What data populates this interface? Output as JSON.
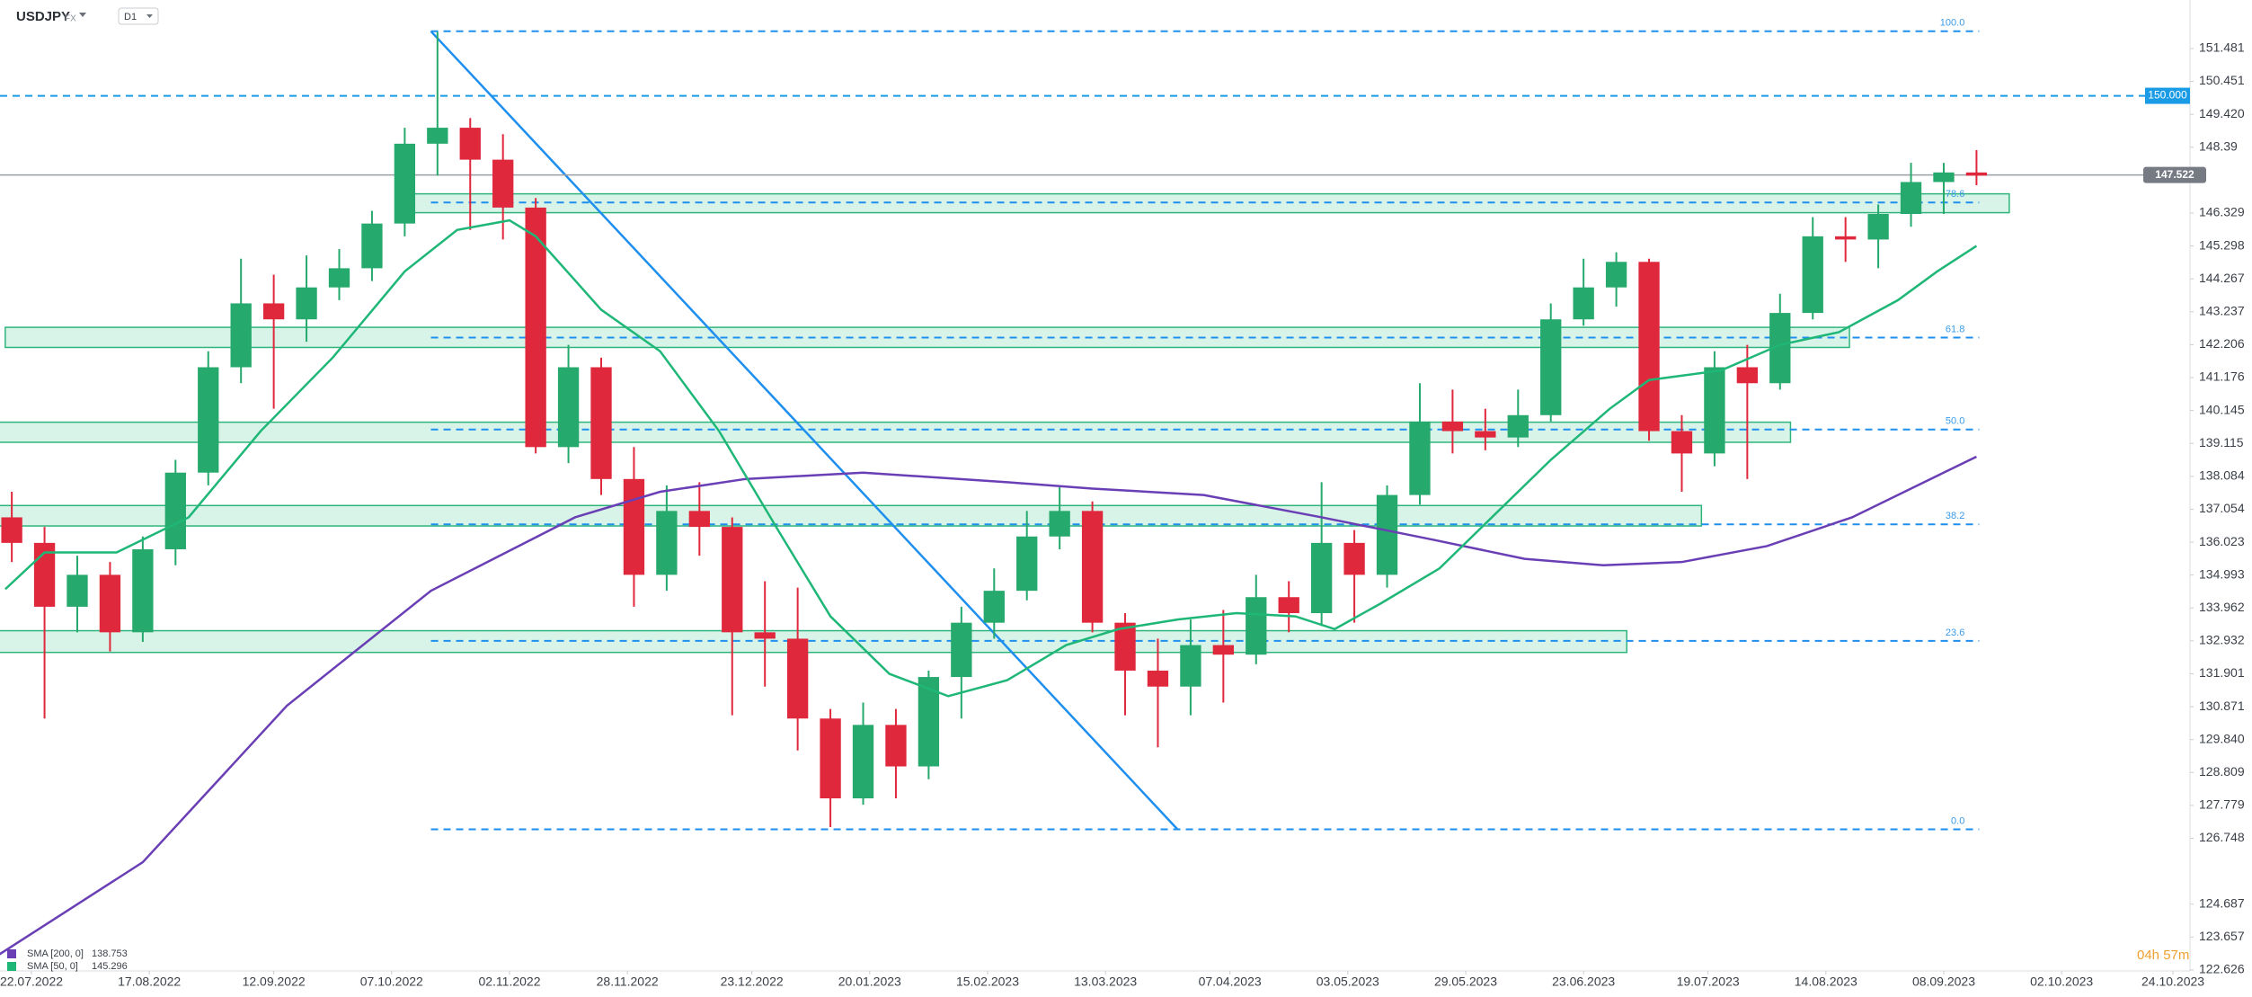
{
  "chart_data": {
    "type": "candlestick",
    "title": "USDJPY",
    "market": "FX",
    "interval": "D1",
    "countdown": "04h 57m",
    "up_color": "#26a96c",
    "down_color": "#e0283c",
    "xlim": [
      -4.8,
      329.6
    ],
    "ylim": [
      122.596,
      153.0
    ],
    "yticks": [
      151.481,
      150.451,
      {
        "value": 149.42,
        "label": "149.420"
      },
      148.39,
      146.329,
      145.298,
      144.267,
      143.237,
      142.206,
      141.176,
      140.145,
      139.115,
      138.084,
      137.054,
      136.023,
      134.993,
      133.962,
      132.932,
      131.901,
      130.871,
      {
        "value": 129.84,
        "label": "129.840"
      },
      128.809,
      127.779,
      126.748,
      124.687,
      123.657,
      122.626
    ],
    "xticks": [
      {
        "value": 0,
        "label": "22.07.2022"
      },
      {
        "value": 18,
        "label": "17.08.2022"
      },
      {
        "value": 37,
        "label": "12.09.2022"
      },
      {
        "value": 55,
        "label": "07.10.2022"
      },
      {
        "value": 73,
        "label": "02.11.2022"
      },
      {
        "value": 91,
        "label": "28.11.2022"
      },
      {
        "value": 110,
        "label": "23.12.2022"
      },
      {
        "value": 128,
        "label": "20.01.2023"
      },
      {
        "value": 146,
        "label": "15.02.2023"
      },
      {
        "value": 164,
        "label": "13.03.2023"
      },
      {
        "value": 183,
        "label": "07.04.2023"
      },
      {
        "value": 201,
        "label": "03.05.2023"
      },
      {
        "value": 219,
        "label": "29.05.2023"
      },
      {
        "value": 237,
        "label": "23.06.2023"
      },
      {
        "value": 256,
        "label": "19.07.2023"
      },
      {
        "value": 274,
        "label": "14.08.2023"
      },
      {
        "value": 292,
        "label": "08.09.2023"
      },
      {
        "value": 310,
        "label": "02.10.2023"
      },
      {
        "value": 327,
        "label": "24.10.2023"
      }
    ],
    "x": [
      -3,
      2,
      7,
      12,
      17,
      22,
      27,
      32,
      37,
      42,
      47,
      52,
      57,
      62,
      67,
      72,
      77,
      82,
      87,
      92,
      97,
      102,
      107,
      112,
      117,
      122,
      127,
      132,
      137,
      142,
      147,
      152,
      157,
      162,
      167,
      172,
      177,
      182,
      187,
      192,
      197,
      202,
      207,
      212,
      217,
      222,
      227,
      232,
      237,
      242,
      247,
      252,
      257,
      262,
      267,
      272,
      277,
      282,
      287,
      292,
      297
    ],
    "open": [
      136.8,
      136.0,
      134.0,
      135.0,
      133.2,
      135.8,
      138.2,
      141.5,
      143.5,
      143.0,
      144.0,
      144.6,
      146.0,
      148.5,
      149.0,
      148.0,
      146.5,
      139.0,
      141.5,
      138.0,
      135.0,
      137.0,
      136.5,
      133.2,
      133.0,
      130.5,
      128.0,
      130.3,
      129.0,
      131.8,
      133.5,
      134.5,
      136.2,
      137.0,
      133.5,
      132.0,
      131.5,
      132.8,
      132.5,
      134.3,
      133.8,
      136.0,
      135.0,
      137.5,
      139.8,
      139.5,
      139.3,
      140.0,
      143.0,
      144.0,
      144.8,
      139.5,
      138.8,
      141.5,
      141.0,
      143.2,
      145.6,
      145.5,
      146.3,
      147.3,
      147.6
    ],
    "high": [
      137.6,
      136.5,
      135.6,
      135.4,
      136.2,
      138.6,
      142.0,
      144.9,
      144.4,
      145.0,
      145.2,
      146.4,
      149.0,
      152.0,
      149.3,
      148.8,
      146.8,
      142.2,
      141.8,
      139.0,
      137.8,
      137.9,
      136.8,
      134.8,
      134.6,
      130.8,
      131.0,
      130.8,
      132.0,
      134.0,
      135.2,
      137.0,
      137.8,
      137.3,
      133.8,
      133.0,
      133.6,
      133.9,
      135.0,
      134.8,
      137.9,
      136.4,
      137.8,
      141.0,
      140.8,
      140.2,
      140.8,
      143.5,
      144.9,
      145.1,
      144.9,
      140.0,
      142.0,
      142.2,
      143.8,
      146.2,
      146.2,
      146.6,
      147.9,
      147.9,
      148.3
    ],
    "low": [
      135.4,
      130.5,
      133.2,
      132.6,
      132.9,
      135.3,
      137.8,
      141.0,
      140.2,
      142.3,
      143.6,
      144.2,
      145.6,
      147.5,
      145.8,
      145.5,
      138.8,
      138.5,
      137.5,
      134.0,
      134.5,
      135.6,
      130.6,
      131.5,
      129.5,
      127.1,
      127.8,
      128.0,
      128.6,
      130.5,
      133.0,
      134.2,
      135.8,
      133.2,
      130.6,
      129.6,
      130.6,
      131.0,
      132.2,
      133.2,
      133.4,
      133.5,
      134.6,
      137.2,
      138.8,
      138.9,
      139.0,
      139.8,
      142.8,
      143.4,
      139.2,
      137.6,
      138.4,
      138.0,
      140.8,
      143.0,
      144.8,
      144.6,
      145.9,
      146.3,
      147.2
    ],
    "close": [
      136.0,
      134.0,
      135.0,
      133.2,
      135.8,
      138.2,
      141.5,
      143.5,
      143.0,
      144.0,
      144.6,
      146.0,
      148.5,
      149.0,
      148.0,
      146.5,
      139.0,
      141.5,
      138.0,
      135.0,
      137.0,
      136.5,
      133.2,
      133.0,
      130.5,
      128.0,
      130.3,
      129.0,
      131.8,
      133.5,
      134.5,
      136.2,
      137.0,
      133.5,
      132.0,
      131.5,
      132.8,
      132.5,
      134.3,
      133.8,
      136.0,
      135.0,
      137.5,
      139.8,
      139.5,
      139.3,
      140.0,
      143.0,
      144.0,
      144.8,
      139.5,
      138.8,
      141.5,
      141.0,
      143.2,
      145.6,
      145.5,
      146.3,
      147.3,
      147.6,
      147.5
    ],
    "indicators": [
      {
        "name": "SMA [200, 0]",
        "value": 138.753,
        "color": "#6a3fb5",
        "x": [
          -5,
          17,
          39,
          61,
          83,
          96,
          109,
          127,
          149,
          162,
          179,
          197,
          214,
          228,
          240,
          252,
          265,
          278,
          289,
          297
        ],
        "values": [
          123.1,
          126.0,
          130.9,
          134.5,
          136.8,
          137.6,
          138.0,
          138.2,
          137.9,
          137.7,
          137.5,
          136.8,
          136.1,
          135.5,
          135.3,
          135.4,
          135.9,
          136.8,
          137.9,
          138.7
        ]
      },
      {
        "name": "SMA [50, 0]",
        "value": 145.296,
        "color": "#1fb777",
        "x": [
          -4,
          2,
          13,
          24,
          35,
          46,
          57,
          65,
          73,
          77,
          87,
          96,
          105,
          114,
          122,
          131,
          140,
          149,
          158,
          166,
          175,
          184,
          193,
          199,
          206,
          215,
          223,
          232,
          241,
          247,
          258,
          267,
          276,
          285,
          291,
          297
        ],
        "values": [
          134.55,
          135.7,
          135.7,
          136.8,
          139.5,
          141.8,
          144.5,
          145.8,
          146.1,
          145.6,
          143.3,
          142.0,
          139.5,
          136.4,
          133.7,
          131.9,
          131.2,
          131.7,
          132.8,
          133.3,
          133.6,
          133.8,
          133.7,
          133.3,
          134.1,
          135.2,
          136.8,
          138.6,
          140.2,
          141.1,
          141.4,
          142.2,
          142.6,
          143.6,
          144.5,
          145.3
        ]
      }
    ],
    "zones": [
      {
        "x": [
          56,
          302
        ],
        "low": 146.34,
        "high": 146.93
      },
      {
        "x": [
          -4,
          277.6
        ],
        "low": 142.12,
        "high": 142.75
      },
      {
        "x": [
          -5,
          268.6
        ],
        "low": 139.15,
        "high": 139.78
      },
      {
        "x": [
          -5,
          255
        ],
        "low": 136.53,
        "high": 137.17
      },
      {
        "x": [
          -5,
          243.6
        ],
        "low": 132.57,
        "high": 133.25
      }
    ],
    "fib_x": [
      61,
      297.4
    ],
    "fib_levels": [
      {
        "label": "100.0",
        "price": 152.02
      },
      {
        "label": "78.6",
        "price": 146.66
      },
      {
        "label": "61.8",
        "price": 142.43
      },
      {
        "label": "50.0",
        "price": 139.55
      },
      {
        "label": "38.2",
        "price": 136.58
      },
      {
        "label": "23.6",
        "price": 132.93
      },
      {
        "label": "0.0",
        "price": 127.03
      }
    ],
    "trendline": {
      "x": [
        61,
        175
      ],
      "values": [
        152.02,
        127.03
      ]
    },
    "alert_level": {
      "value": 150,
      "label": "150.000"
    },
    "current_price": 147.522
  }
}
